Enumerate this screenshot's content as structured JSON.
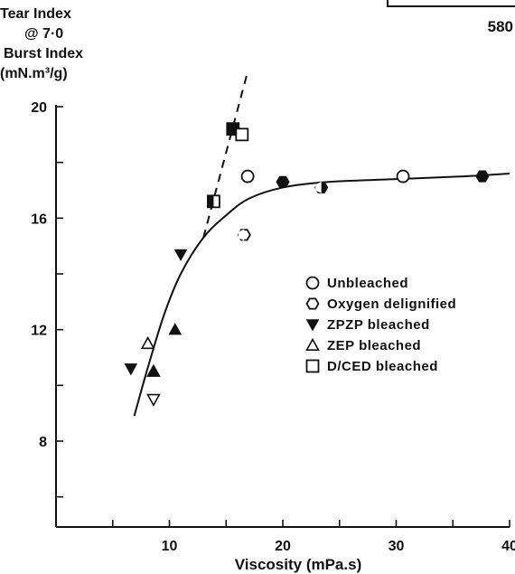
{
  "page": {
    "number": "580"
  },
  "chart_data": {
    "type": "scatter",
    "ylabel_lines": [
      "Tear  Index",
      "@  7·0",
      "Burst  Index",
      "(mN.m³/g)"
    ],
    "xlabel": "Viscosity  (mPa.s)",
    "xlim": [
      0,
      40
    ],
    "ylim": [
      4,
      20
    ],
    "x_ticks": [
      10,
      20,
      30,
      40
    ],
    "x_minor_ticks": [
      5,
      15,
      25,
      35
    ],
    "y_ticks": [
      8,
      12,
      16,
      20
    ],
    "y_minor_ticks": [
      6,
      10,
      14,
      18
    ],
    "grid": false,
    "legend_position": "right-center",
    "series": [
      {
        "name": "Unbleached",
        "marker": "circle-open",
        "points": [
          [
            16.9,
            17.5
          ],
          [
            30.6,
            17.5
          ]
        ]
      },
      {
        "name": "Oxygen  delignified",
        "marker": "hexagon-open",
        "points": [
          [
            16.6,
            15.4
          ],
          [
            20.0,
            17.3
          ],
          [
            23.4,
            17.1
          ],
          [
            37.6,
            17.5
          ]
        ]
      },
      {
        "name": "ZPZP  bleached",
        "marker": "triangle-down-filled",
        "points": [
          [
            6.6,
            10.6
          ],
          [
            11.0,
            14.7
          ],
          [
            10.5,
            12.0
          ]
        ]
      },
      {
        "name": "ZEP  bleached",
        "marker": "triangle-up-open",
        "points": [
          [
            8.1,
            11.5
          ],
          [
            8.6,
            10.5
          ],
          [
            8.6,
            9.5
          ]
        ]
      },
      {
        "name": "D/CED  bleached",
        "marker": "square-open",
        "points": [
          [
            13.9,
            16.6
          ],
          [
            15.6,
            19.2
          ],
          [
            16.4,
            19.0
          ]
        ]
      }
    ],
    "fit_curve": [
      [
        6.9,
        8.9
      ],
      [
        8,
        10.5
      ],
      [
        9.5,
        12.5
      ],
      [
        11,
        14.0
      ],
      [
        13,
        15.3
      ],
      [
        15,
        16.1
      ],
      [
        17,
        16.7
      ],
      [
        20,
        17.1
      ],
      [
        24,
        17.3
      ],
      [
        30,
        17.4
      ],
      [
        36,
        17.5
      ],
      [
        40,
        17.6
      ]
    ],
    "dashed_line": [
      [
        13.0,
        15.3
      ],
      [
        16.8,
        21.1
      ]
    ]
  }
}
